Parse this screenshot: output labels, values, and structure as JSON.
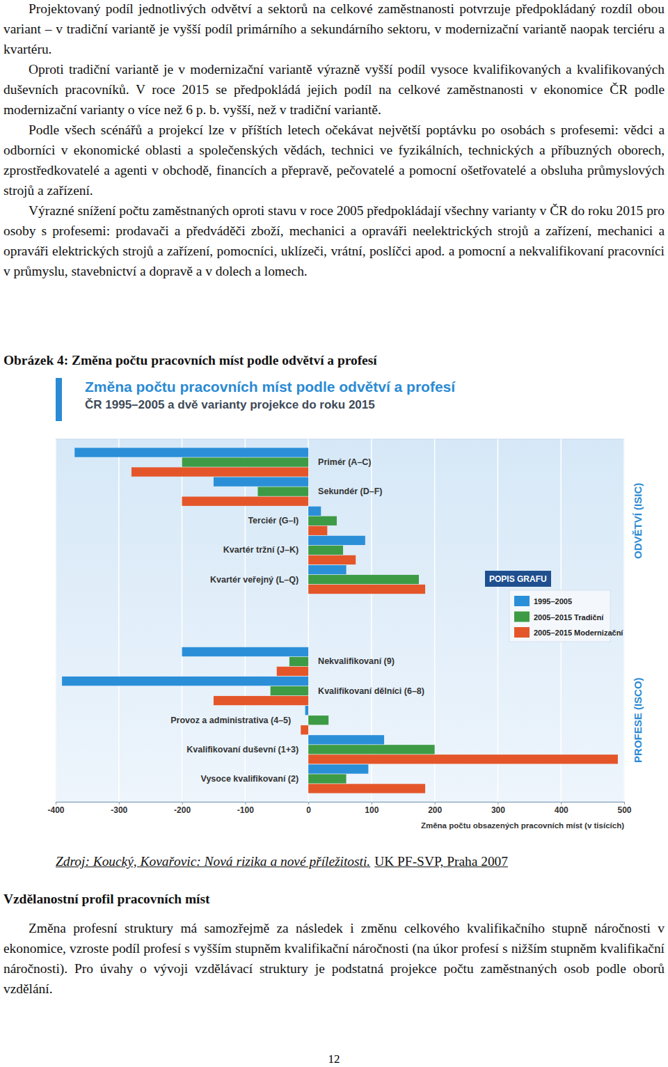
{
  "document": {
    "paragraphs": [
      "Projektovaný podíl jednotlivých odvětví a sektorů na celkové zaměstnanosti potvrzuje předpokládaný rozdíl obou variant – v tradiční variantě je vyšší podíl primárního a sekundárního sektoru, v modernizační variantě naopak terciéru a kvartéru.",
      "Oproti tradiční variantě je v modernizační variantě výrazně vyšší podíl vysoce kvalifikovaných a kvalifikovaných duševních pracovníků. V roce 2015 se předpokládá jejich podíl na celkové zaměstnanosti v ekonomice ČR podle modernizační varianty o více než 6 p. b. vyšší, než v tradiční variantě.",
      "Podle všech scénářů a projekcí lze v příštích letech očekávat největší poptávku po osobách s profesemi: vědci a odborníci v ekonomické oblasti a společenských vědách, technici ve fyzikálních, technických a příbuzných oborech, zprostředkovatelé a agenti v obchodě, financích a přepravě, pečovatelé a pomocní ošetřovatelé a obsluha průmyslových strojů a zařízení.",
      "Výrazné snížení počtu zaměstnaných oproti stavu v roce 2005 předpokládají všechny varianty v ČR do roku 2015 pro osoby s profesemi: prodavači a předváděči zboží, mechanici a opraváři neelektrických strojů a zařízení, mechanici a opraváři elektrických strojů a zařízení, pomocníci, uklízeči, vrátní, poslíčci apod. a pomocní a nekvalifikovaní pracovníci v průmyslu, stavebnictví a dopravě a v dolech a lomech."
    ],
    "caption": "Obrázek 4: Změna počtu pracovních míst podle odvětví a profesí",
    "source": [
      "Zdroj: Koucký, Kovařovic: Nová rizika a nové příležitosti.",
      "UK PF-SVP, Praha 2007"
    ],
    "heading": "Vzdělanostní profil pracovních míst",
    "closing_paragraph": "Změna profesní struktury má samozřejmě za následek i změnu celkového kvalifikačního stupně náročnosti v ekonomice, vzroste podíl profesí s vyšším stupněm kvalifikační náročnosti (na úkor profesí s nižším stupněm kvalifikační náročnosti). Pro úvahy o vývoji vzdělávací struktury je podstatná projekce počtu zaměstnaných osob podle oborů vzdělání.",
    "page_number": 12
  },
  "chart_data": {
    "type": "bar",
    "orientation": "horizontal",
    "title": "Změna počtu pracovních míst podle odvětví a profesí",
    "subtitle": "ČR 1995–2005 a dvě varianty projekce do roku 2015",
    "x_label": "Změna počtu obsazených pracovních míst (v tisících)",
    "legend_title": "POPIS GRAFU",
    "categories": [
      "Primér (A–C)",
      "Sekundér (D–F)",
      "Terciér (G–I)",
      "Kvartér tržní (J–K)",
      "Kvartér veřejný (L–Q)",
      "Nekvalifikovaní (9)",
      "Kvalifikovaní dělníci (6–8)",
      "Provoz a administrativa (4–5)",
      "Kvalifikovaní duševní (1+3)",
      "Vysoce kvalifikovaní (2)"
    ],
    "groups": [
      {
        "label": "ODVĚTVÍ (ISIC)",
        "categories": [
          "Primér (A–C)",
          "Sekundér (D–F)",
          "Terciér (G–I)",
          "Kvartér tržní (J–K)",
          "Kvartér veřejný (L–Q)"
        ]
      },
      {
        "label": "PROFESE (ISCO)",
        "categories": [
          "Nekvalifikovaní (9)",
          "Kvalifikovaní dělníci (6–8)",
          "Provoz a administrativa (4–5)",
          "Kvalifikovaní duševní (1+3)",
          "Vysoce kvalifikovaní (2)"
        ]
      }
    ],
    "series": [
      {
        "name": "1995–2005",
        "color": "#2b8fd8",
        "values": [
          -370,
          -150,
          20,
          90,
          60,
          -200,
          -390,
          -5,
          120,
          95
        ]
      },
      {
        "name": "2005–2015 Tradiční",
        "color": "#3e9b45",
        "values": [
          -200,
          -80,
          45,
          55,
          175,
          -30,
          -60,
          32,
          200,
          60
        ]
      },
      {
        "name": "2005–2015 Modernizační",
        "color": "#e4562a",
        "values": [
          -280,
          -200,
          30,
          75,
          185,
          -50,
          -150,
          -12,
          490,
          185
        ]
      }
    ],
    "xlim": [
      -400,
      500
    ],
    "xticks": [
      -400,
      -300,
      -200,
      -100,
      0,
      100,
      200,
      300,
      400,
      500
    ],
    "grid": true
  }
}
